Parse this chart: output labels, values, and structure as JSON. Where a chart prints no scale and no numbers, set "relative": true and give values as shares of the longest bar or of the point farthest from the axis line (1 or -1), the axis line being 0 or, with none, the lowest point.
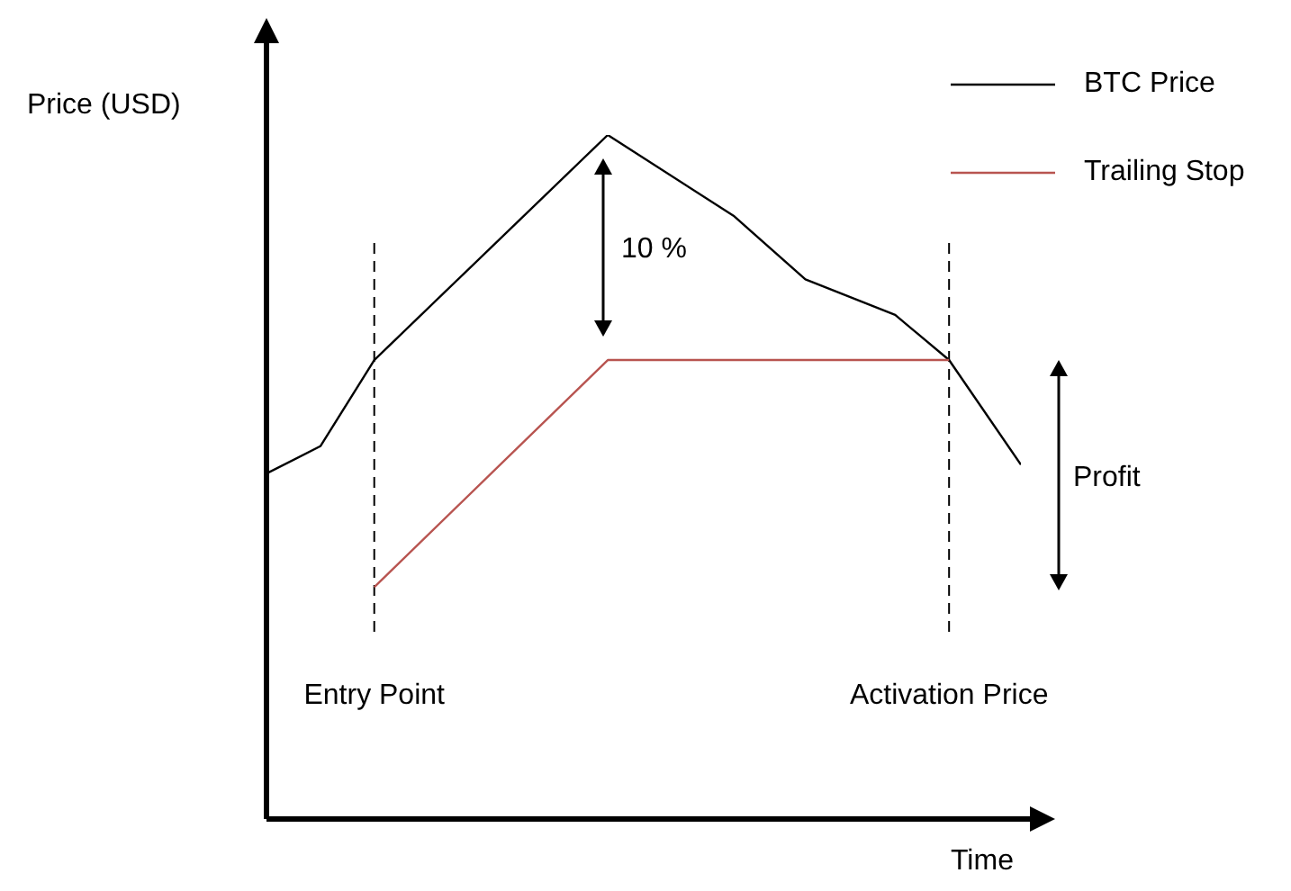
{
  "chart_data": {
    "type": "line",
    "relative": true,
    "xlabel": "Time",
    "ylabel": "Price (USD)",
    "categories": [
      null,
      null,
      null,
      null,
      null,
      null,
      "Entry Point",
      null,
      null,
      null,
      null,
      null,
      null,
      null,
      null,
      null,
      null,
      null,
      null,
      null,
      null,
      null,
      null,
      null,
      null,
      null,
      null,
      null,
      null,
      null,
      null,
      null,
      null,
      null,
      null,
      null,
      null,
      null,
      "Activation Price",
      null,
      null,
      null,
      null
    ],
    "series": [
      {
        "name": "BTC Price",
        "color": "#000000",
        "values": [
          0.505,
          null,
          null,
          0.545,
          null,
          null,
          0.671,
          null,
          null,
          null,
          null,
          null,
          null,
          null,
          null,
          null,
          null,
          null,
          null,
          1,
          null,
          null,
          null,
          null,
          null,
          null,
          0.882,
          null,
          null,
          null,
          0.789,
          null,
          null,
          null,
          null,
          0.737,
          null,
          null,
          0.671,
          null,
          null,
          null,
          0.518
        ]
      },
      {
        "name": "Trailing Stop",
        "color": "#b85450",
        "values": [
          null,
          null,
          null,
          null,
          null,
          null,
          0.339,
          null,
          null,
          null,
          null,
          null,
          null,
          null,
          null,
          null,
          null,
          null,
          null,
          0.671,
          null,
          null,
          null,
          null,
          null,
          null,
          null,
          null,
          null,
          null,
          null,
          null,
          null,
          null,
          null,
          null,
          null,
          null,
          0.671,
          null,
          null,
          null,
          null
        ]
      }
    ],
    "ref_lines": [
      {
        "axis": "x",
        "value": "Entry Point",
        "color": "#000000",
        "line_style": "dashed"
      },
      {
        "axis": "x",
        "value": "Activation Price",
        "color": "#000000",
        "line_style": "dashed"
      }
    ],
    "annotations": [
      "10 %",
      "Profit"
    ],
    "legend": "top right",
    "grid": false,
    "marker": "none",
    "line_style": "solid"
  }
}
